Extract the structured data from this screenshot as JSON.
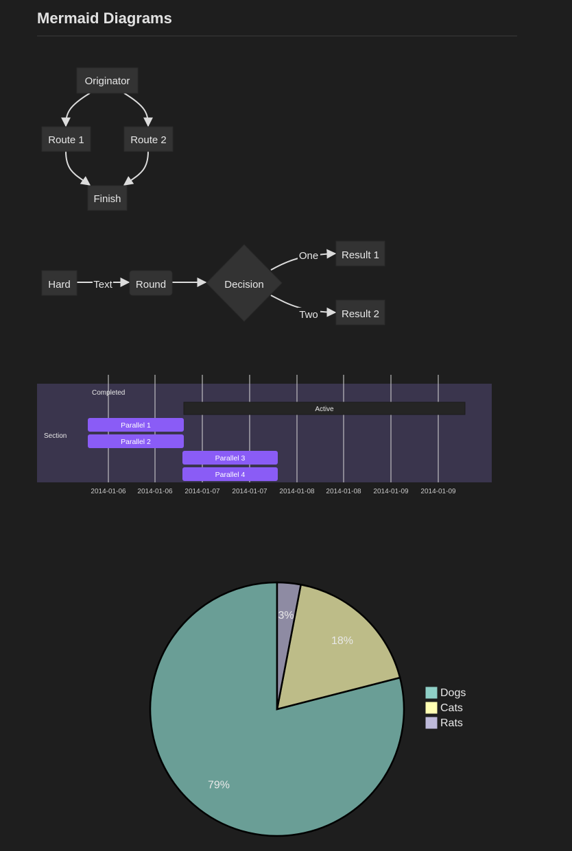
{
  "page": {
    "title": "Mermaid Diagrams"
  },
  "flow1": {
    "originator": "Originator",
    "route1": "Route 1",
    "route2": "Route 2",
    "finish": "Finish"
  },
  "flow2": {
    "hard": "Hard",
    "text_label": "Text",
    "round": "Round",
    "decision": "Decision",
    "one_label": "One",
    "two_label": "Two",
    "result1": "Result 1",
    "result2": "Result 2"
  },
  "gantt": {
    "section": "Section",
    "completed": "Completed",
    "active": "Active",
    "parallel1": "Parallel 1",
    "parallel2": "Parallel 2",
    "parallel3": "Parallel 3",
    "parallel4": "Parallel 4",
    "ticks": [
      "2014-01-06",
      "2014-01-06",
      "2014-01-07",
      "2014-01-07",
      "2014-01-08",
      "2014-01-08",
      "2014-01-09",
      "2014-01-09"
    ],
    "colors": {
      "background": "#3a354d",
      "task": "#8a5cf6",
      "active": "#252525"
    }
  },
  "chart_data": {
    "type": "pie",
    "title": "",
    "slices": [
      {
        "name": "Dogs",
        "percent": 79,
        "label": "79%",
        "color": "#6a9e96",
        "legend_color": "#8ecfc6"
      },
      {
        "name": "Cats",
        "percent": 18,
        "label": "18%",
        "color": "#bdbc88",
        "legend_color": "#ffffb3"
      },
      {
        "name": "Rats",
        "percent": 3,
        "label": "3%",
        "color": "#8e8ba3",
        "legend_color": "#bebada"
      }
    ],
    "legend_position": "right"
  }
}
